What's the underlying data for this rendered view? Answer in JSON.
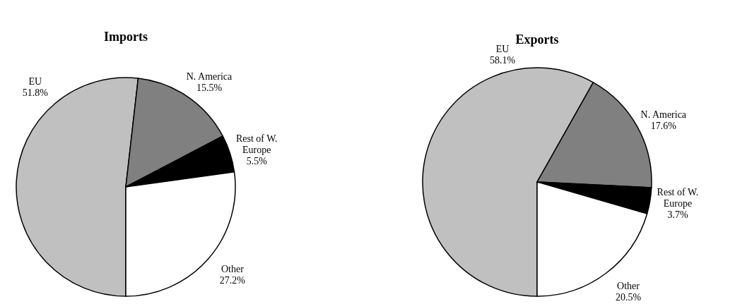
{
  "chart_data": [
    {
      "type": "pie",
      "title": "Imports",
      "categories": [
        "EU",
        "N. America",
        "Rest of W. Europe",
        "Other"
      ],
      "values": [
        51.8,
        15.5,
        5.5,
        27.2
      ],
      "value_labels": [
        "51.8%",
        "15.5%",
        "5.5%",
        "27.2%"
      ],
      "colors": [
        "#c0c0c0",
        "#808080",
        "#000000",
        "#ffffff"
      ]
    },
    {
      "type": "pie",
      "title": "Exports",
      "categories": [
        "EU",
        "N. America",
        "Rest of W. Europe",
        "Other"
      ],
      "values": [
        58.1,
        17.6,
        3.7,
        20.5
      ],
      "value_labels": [
        "58.1%",
        "17.6%",
        "3.7%",
        "20.5%"
      ],
      "colors": [
        "#c0c0c0",
        "#808080",
        "#000000",
        "#ffffff"
      ]
    }
  ]
}
